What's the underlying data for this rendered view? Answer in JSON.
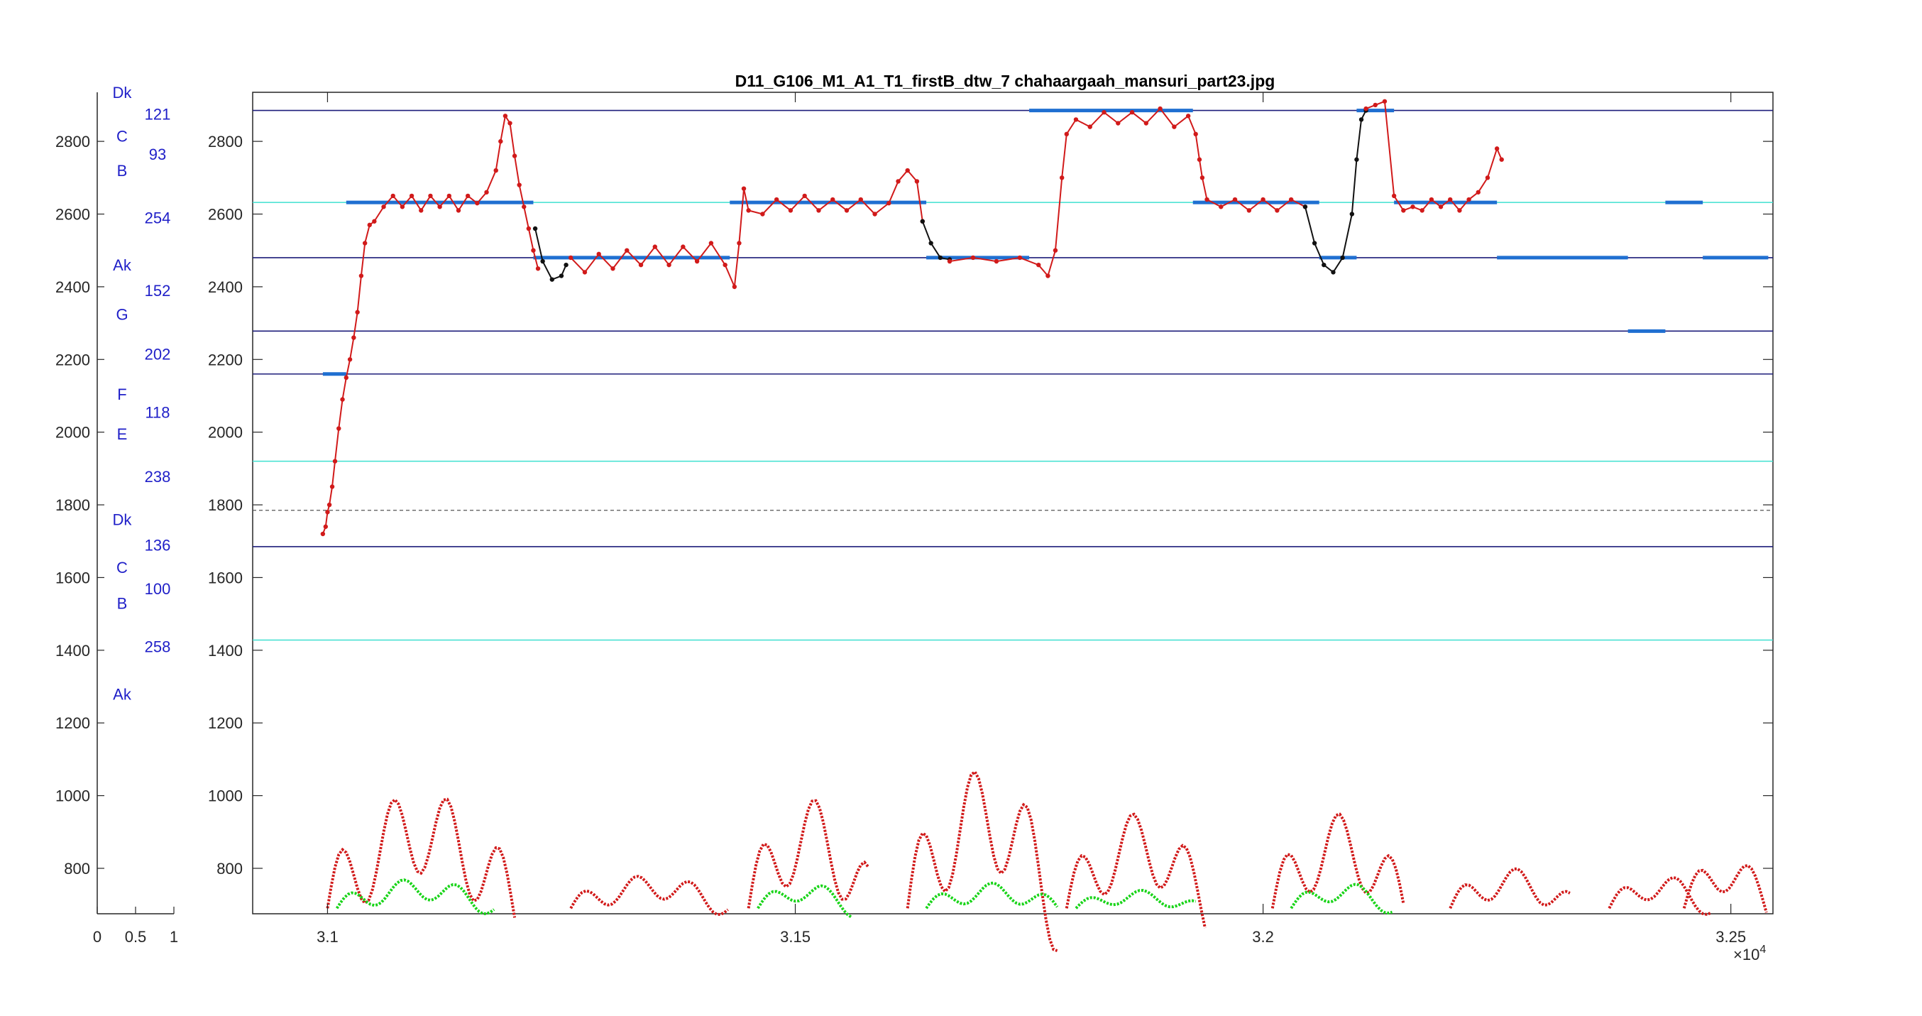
{
  "title": "D11_G106_M1_A1_T1_firstB_dtw_7 chahaargaah_mansuri_part23.jpg",
  "exponent": "×10",
  "exponent_power": "4",
  "colors": {
    "axis": "#262626",
    "title": "#000000",
    "notes": "#1f1fc8",
    "navy": "#1d1d7a",
    "cyan": "#3fe0d0",
    "red": "#d11a1a",
    "green": "#19d419",
    "black": "#111111",
    "blue": "#1f6fd1",
    "olive": "#c0cf3a",
    "thin_blue": "#5a8fd8"
  },
  "left_panel": {
    "xticks": [
      "0",
      "0.5",
      "1"
    ],
    "yticks": [
      "800",
      "1000",
      "1200",
      "1400",
      "1600",
      "1800",
      "2000",
      "2200",
      "2400",
      "2600",
      "2800"
    ],
    "notes": [
      {
        "text": "Dk",
        "y": 2935
      },
      {
        "text": "121",
        "y": 2875
      },
      {
        "text": "C",
        "y": 2815
      },
      {
        "text": "93",
        "y": 2765
      },
      {
        "text": "B",
        "y": 2720
      },
      {
        "text": "254",
        "y": 2590
      },
      {
        "text": "Ak",
        "y": 2460
      },
      {
        "text": "152",
        "y": 2390
      },
      {
        "text": "G",
        "y": 2325
      },
      {
        "text": "202",
        "y": 2215
      },
      {
        "text": "F",
        "y": 2105
      },
      {
        "text": "118",
        "y": 2055
      },
      {
        "text": "E",
        "y": 1995
      },
      {
        "text": "238",
        "y": 1878
      },
      {
        "text": "Dk",
        "y": 1760
      },
      {
        "text": "136",
        "y": 1690
      },
      {
        "text": "C",
        "y": 1628
      },
      {
        "text": "100",
        "y": 1570
      },
      {
        "text": "B",
        "y": 1530
      },
      {
        "text": "258",
        "y": 1410
      },
      {
        "text": "Ak",
        "y": 1280
      }
    ]
  },
  "chart_data": {
    "type": "line",
    "title": "D11_G106_M1_A1_T1_firstB_dtw_7 chahaargaah_mansuri_part23.jpg",
    "xlabel": "",
    "ylabel": "",
    "xlim": [
      30920,
      32545
    ],
    "ylim": [
      675,
      2935
    ],
    "xticks": [
      31000,
      31500,
      32000,
      32500
    ],
    "xtick_labels": [
      "3.1",
      "3.15",
      "3.2",
      "3.25"
    ],
    "yticks": [
      800,
      1000,
      1200,
      1400,
      1600,
      1800,
      2000,
      2200,
      2400,
      2600,
      2800
    ],
    "grid": false,
    "reference_lines": {
      "navy": [
        2885,
        2480,
        2278,
        2160,
        1685
      ],
      "cyan": [
        2632,
        1920,
        1428
      ],
      "gray_dashed": [
        1785
      ]
    },
    "series": [
      {
        "color": "red",
        "x": [
          30995,
          30998,
          31000,
          31002,
          31005,
          31008,
          31012,
          31016,
          31020,
          31024,
          31028,
          31032,
          31036,
          31040,
          31045,
          31050,
          31060,
          31070,
          31080,
          31090,
          31100,
          31110,
          31120,
          31130,
          31140,
          31150,
          31160,
          31170,
          31180,
          31185,
          31190,
          31195,
          31200,
          31205,
          31210,
          31215,
          31220,
          31225
        ],
        "y": [
          1720,
          1740,
          1780,
          1800,
          1850,
          1920,
          2010,
          2090,
          2150,
          2200,
          2260,
          2330,
          2430,
          2520,
          2570,
          2580,
          2620,
          2650,
          2620,
          2650,
          2610,
          2650,
          2620,
          2650,
          2610,
          2650,
          2630,
          2660,
          2720,
          2800,
          2870,
          2850,
          2760,
          2680,
          2620,
          2560,
          2500,
          2450
        ]
      },
      {
        "color": "black",
        "x": [
          31222,
          31230,
          31240,
          31250,
          31255
        ],
        "y": [
          2560,
          2470,
          2420,
          2430,
          2460
        ]
      },
      {
        "color": "red",
        "x": [
          31260,
          31275,
          31290,
          31305,
          31320,
          31335,
          31350,
          31365,
          31380,
          31395,
          31410,
          31425,
          31435,
          31440,
          31445,
          31450,
          31465,
          31480,
          31495,
          31510,
          31525,
          31540,
          31555,
          31570,
          31585,
          31600,
          31610,
          31620,
          31630,
          31636
        ],
        "y": [
          2480,
          2440,
          2490,
          2450,
          2500,
          2460,
          2510,
          2460,
          2510,
          2470,
          2520,
          2460,
          2400,
          2520,
          2670,
          2610,
          2600,
          2640,
          2610,
          2650,
          2610,
          2640,
          2610,
          2640,
          2600,
          2630,
          2690,
          2720,
          2690,
          2580
        ]
      },
      {
        "color": "black",
        "x": [
          31636,
          31645,
          31655,
          31665
        ],
        "y": [
          2580,
          2520,
          2480,
          2475
        ]
      },
      {
        "color": "red",
        "x": [
          31665,
          31690,
          31715,
          31740,
          31760,
          31770,
          31778,
          31785,
          31790,
          31800,
          31815,
          31830,
          31845,
          31860,
          31875,
          31890,
          31905,
          31920,
          31928,
          31932,
          31935,
          31940,
          31955,
          31970,
          31985,
          32000,
          32015,
          32030,
          32045
        ],
        "y": [
          2470,
          2480,
          2470,
          2480,
          2460,
          2430,
          2500,
          2700,
          2820,
          2860,
          2840,
          2880,
          2850,
          2880,
          2850,
          2890,
          2840,
          2870,
          2820,
          2750,
          2700,
          2640,
          2620,
          2640,
          2610,
          2640,
          2610,
          2640,
          2620
        ]
      },
      {
        "color": "black",
        "x": [
          32045,
          32055,
          32065,
          32075,
          32085,
          32095,
          32100,
          32105,
          32110
        ],
        "y": [
          2620,
          2520,
          2460,
          2440,
          2480,
          2600,
          2750,
          2860,
          2885
        ]
      },
      {
        "color": "red",
        "x": [
          32110,
          32120,
          32130,
          32140,
          32150,
          32160,
          32170,
          32180,
          32190,
          32200,
          32210,
          32220,
          32230,
          32240,
          32250,
          32255
        ],
        "y": [
          2890,
          2900,
          2910,
          2650,
          2610,
          2620,
          2610,
          2640,
          2620,
          2640,
          2610,
          2640,
          2660,
          2700,
          2780,
          2750
        ]
      }
    ]
  }
}
